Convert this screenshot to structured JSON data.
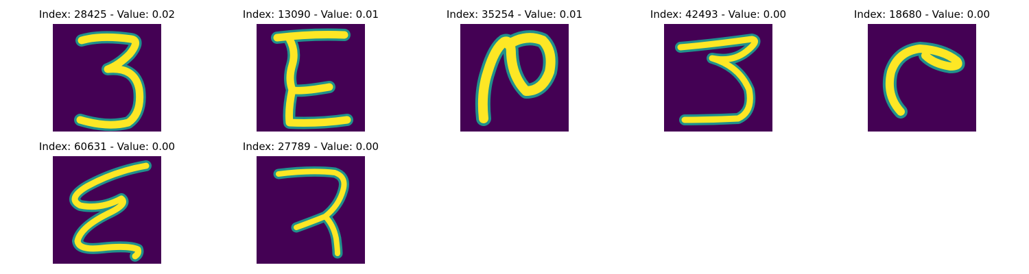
{
  "background_color": "#440154",
  "stroke_colors": [
    "#21918c",
    "#5ec962",
    "#fde725"
  ],
  "panels": [
    {
      "title": "Index: 28425 - Value: 0.02",
      "glyph": "digit-3-like handwritten character"
    },
    {
      "title": "Index: 13090 - Value: 0.01",
      "glyph": "E-like handwritten character"
    },
    {
      "title": "Index: 35254 - Value: 0.01",
      "glyph": "N-like handwritten character"
    },
    {
      "title": "Index: 42493 - Value: 0.00",
      "glyph": "digit-3-like handwritten character"
    },
    {
      "title": "Index: 18680 - Value: 0.00",
      "glyph": "hook-shaped handwritten character"
    },
    {
      "title": "Index: 60631 - Value: 0.00",
      "glyph": "zigzag E-like handwritten character"
    },
    {
      "title": "Index: 27789 - Value: 0.00",
      "glyph": "digit-7-like handwritten character"
    }
  ]
}
